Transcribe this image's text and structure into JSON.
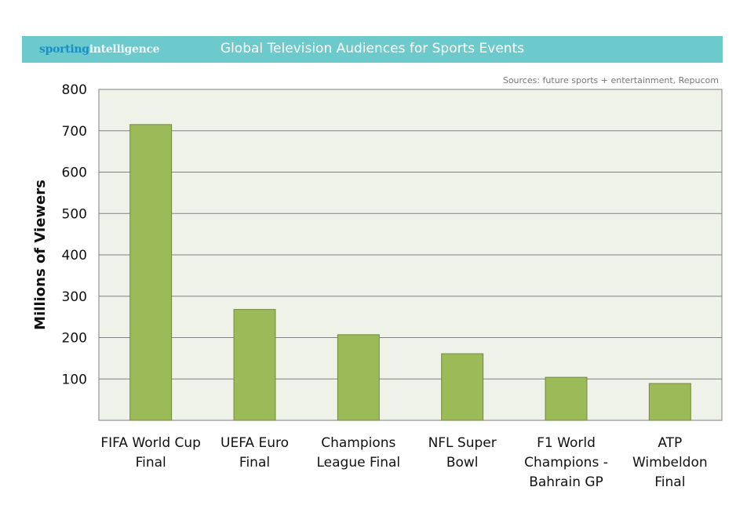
{
  "logo": {
    "part1": "sporting",
    "part2": "intelligence"
  },
  "source": "Sources: future sports + entertainment, Repucom",
  "colors": {
    "header": "#6ccacc",
    "bar": "#9bbb59",
    "bar_border": "#71893f",
    "plot_bg": "#eff2e9",
    "grid": "#808080"
  },
  "chart_data": {
    "type": "bar",
    "title": "Global Television Audiences for Sports Events",
    "xlabel": "",
    "ylabel": "Millions of Viewers",
    "ylim": [
      0,
      800
    ],
    "yticks": [
      100,
      200,
      300,
      400,
      500,
      600,
      700,
      800
    ],
    "grid": true,
    "categories": [
      [
        "FIFA World Cup",
        "Final"
      ],
      [
        "UEFA Euro",
        "Final"
      ],
      [
        "Champions",
        "League Final"
      ],
      [
        "NFL Super",
        "Bowl"
      ],
      [
        "F1 World",
        "Champions -",
        "Bahrain GP"
      ],
      [
        "ATP",
        "Wimbeldon",
        "Final"
      ]
    ],
    "values": [
      715,
      268,
      207,
      161,
      104,
      89
    ]
  }
}
